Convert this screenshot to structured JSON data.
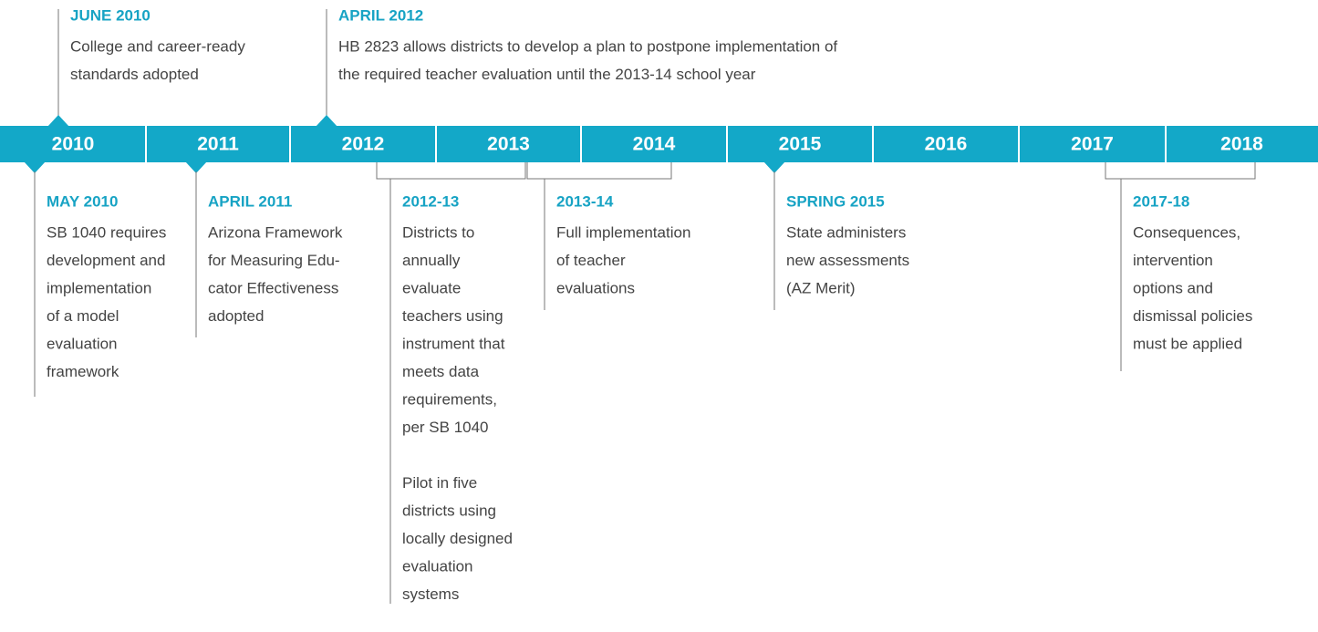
{
  "years": [
    "2010",
    "2011",
    "2012",
    "2013",
    "2014",
    "2015",
    "2016",
    "2017",
    "2018"
  ],
  "top_events": [
    {
      "heading": "JUNE 2010",
      "paragraphs": [
        [
          "College and career-ready",
          "standards adopted"
        ]
      ]
    },
    {
      "heading": "APRIL 2012",
      "paragraphs": [
        [
          "HB 2823 allows districts to develop a plan to postpone implementation of",
          "the required teacher evaluation until the 2013-14 school year"
        ]
      ]
    }
  ],
  "bottom_events": [
    {
      "heading": "MAY 2010",
      "paragraphs": [
        [
          "SB 1040 requires",
          "development and",
          "implementation",
          "of a model",
          "evaluation",
          "framework"
        ]
      ]
    },
    {
      "heading": "APRIL 2011",
      "paragraphs": [
        [
          "Arizona Framework",
          "for Measuring Edu-",
          "cator Effectiveness",
          "adopted"
        ]
      ]
    },
    {
      "heading": "2012-13",
      "paragraphs": [
        [
          "Districts to",
          "annually",
          "evaluate",
          "teachers using",
          "instrument that",
          "meets data",
          "requirements,",
          "per SB 1040"
        ],
        [
          "Pilot in five",
          "districts using",
          "locally designed",
          "evaluation",
          "systems"
        ]
      ]
    },
    {
      "heading": "2013-14",
      "paragraphs": [
        [
          "Full implementation",
          "of teacher",
          "evaluations"
        ]
      ]
    },
    {
      "heading": "SPRING 2015",
      "paragraphs": [
        [
          "State administers",
          "new assessments",
          "(AZ Merit)"
        ]
      ]
    },
    {
      "heading": "2017-18",
      "paragraphs": [
        [
          "Consequences,",
          "intervention",
          "options and",
          "dismissal policies",
          "must be applied"
        ]
      ]
    }
  ]
}
